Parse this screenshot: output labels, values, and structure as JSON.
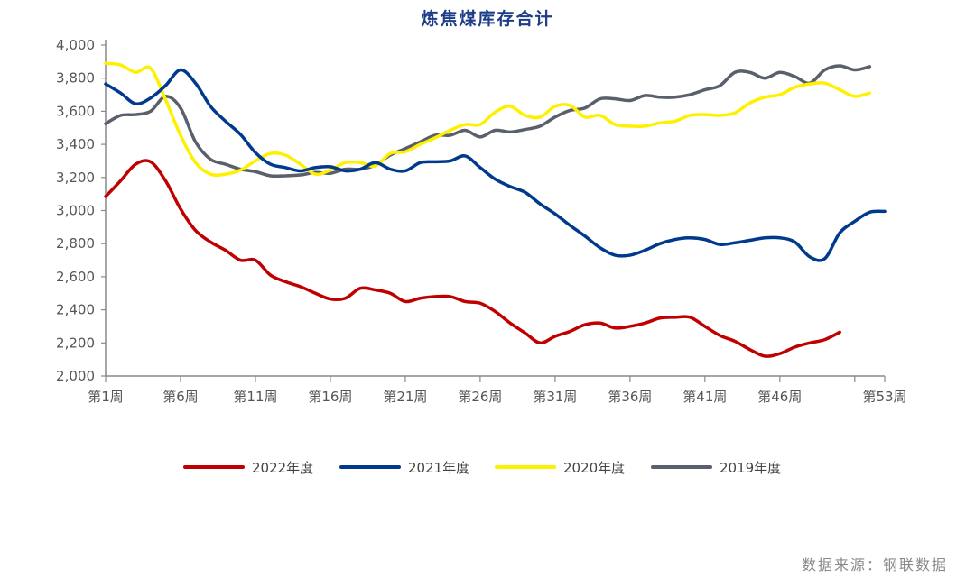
{
  "chart_data": {
    "type": "line",
    "title": "炼焦煤库存合计",
    "xlabel": "",
    "ylabel": "",
    "ylim": [
      2000,
      4000
    ],
    "yticks": [
      "2,000",
      "2,200",
      "2,400",
      "2,600",
      "2,800",
      "3,000",
      "3,200",
      "3,400",
      "3,600",
      "3,800",
      "4,000"
    ],
    "xticks": [
      {
        "week": 1,
        "label": "第1周"
      },
      {
        "week": 6,
        "label": "第6周"
      },
      {
        "week": 11,
        "label": "第11周"
      },
      {
        "week": 16,
        "label": "第16周"
      },
      {
        "week": 21,
        "label": "第21周"
      },
      {
        "week": 26,
        "label": "第26周"
      },
      {
        "week": 31,
        "label": "第31周"
      },
      {
        "week": 36,
        "label": "第36周"
      },
      {
        "week": 41,
        "label": "第41周"
      },
      {
        "week": 46,
        "label": "第46周"
      },
      {
        "week": 51,
        "label": ""
      },
      {
        "week": 53,
        "label": "第53周"
      }
    ],
    "grid": false,
    "legend_position": "bottom",
    "series": [
      {
        "name": "2022年度",
        "color": "#C00000",
        "values": [
          3085,
          3180,
          3280,
          3295,
          3180,
          3010,
          2880,
          2810,
          2760,
          2700,
          2700,
          2610,
          2570,
          2540,
          2500,
          2465,
          2470,
          2530,
          2520,
          2500,
          2450,
          2470,
          2480,
          2480,
          2450,
          2440,
          2390,
          2320,
          2260,
          2200,
          2240,
          2270,
          2310,
          2320,
          2290,
          2300,
          2320,
          2350,
          2355,
          2355,
          2300,
          2245,
          2210,
          2160,
          2120,
          2135,
          2175,
          2200,
          2220,
          2265
        ]
      },
      {
        "name": "2021年度",
        "color": "#003A8C",
        "values": [
          3765,
          3710,
          3645,
          3680,
          3755,
          3850,
          3770,
          3630,
          3540,
          3460,
          3350,
          3280,
          3260,
          3240,
          3260,
          3265,
          3240,
          3250,
          3290,
          3250,
          3240,
          3290,
          3295,
          3300,
          3330,
          3260,
          3190,
          3145,
          3110,
          3040,
          2980,
          2910,
          2845,
          2775,
          2730,
          2730,
          2760,
          2800,
          2825,
          2835,
          2825,
          2795,
          2805,
          2820,
          2835,
          2835,
          2810,
          2720,
          2710,
          2865,
          2935,
          2990,
          2995
        ]
      },
      {
        "name": "2020年度",
        "color": "#FFF000",
        "values": [
          3890,
          3880,
          3835,
          3860,
          3670,
          3455,
          3290,
          3220,
          3220,
          3245,
          3300,
          3345,
          3335,
          3280,
          3220,
          3245,
          3290,
          3290,
          3270,
          3345,
          3355,
          3400,
          3440,
          3485,
          3520,
          3520,
          3595,
          3630,
          3575,
          3565,
          3630,
          3635,
          3565,
          3575,
          3520,
          3510,
          3510,
          3530,
          3540,
          3575,
          3580,
          3575,
          3590,
          3650,
          3685,
          3700,
          3745,
          3765,
          3770,
          3730,
          3690,
          3710
        ]
      },
      {
        "name": "2019年度",
        "color": "#595F6B",
        "values": [
          3525,
          3575,
          3580,
          3600,
          3690,
          3620,
          3415,
          3310,
          3280,
          3250,
          3235,
          3210,
          3210,
          3215,
          3230,
          3225,
          3250,
          3250,
          3275,
          3335,
          3375,
          3415,
          3455,
          3455,
          3485,
          3445,
          3485,
          3475,
          3490,
          3510,
          3565,
          3605,
          3620,
          3675,
          3675,
          3665,
          3695,
          3685,
          3685,
          3700,
          3730,
          3755,
          3835,
          3835,
          3800,
          3835,
          3810,
          3770,
          3850,
          3875,
          3850,
          3870
        ]
      }
    ]
  },
  "source": "数据来源：钢联数据"
}
